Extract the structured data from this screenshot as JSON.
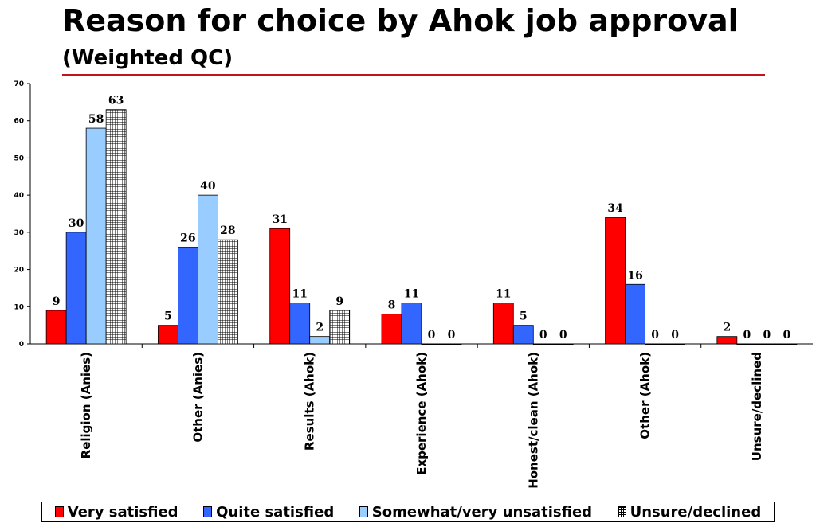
{
  "title": "Reason for choice by Ahok job approval",
  "subtitle": "(Weighted QC)",
  "colors": {
    "accent_rule": "#c0141b"
  },
  "chart_data": {
    "type": "bar",
    "categories": [
      "Religion (Anies)",
      "Other (Anies)",
      "Results (Ahok)",
      "Experience (Ahok)",
      "Honest/clean (Ahok)",
      "Other (Ahok)",
      "Unsure/declined"
    ],
    "series": [
      {
        "name": "Very satisfied",
        "color": "#ff0000",
        "pattern": "solid",
        "values": [
          9,
          5,
          31,
          8,
          11,
          34,
          2
        ]
      },
      {
        "name": "Quite satisfied",
        "color": "#3366ff",
        "pattern": "solid",
        "values": [
          30,
          26,
          11,
          11,
          5,
          16,
          0
        ]
      },
      {
        "name": "Somewhat/very unsatisfied",
        "color": "#99ccff",
        "pattern": "solid",
        "values": [
          58,
          40,
          2,
          0,
          0,
          0,
          0
        ]
      },
      {
        "name": "Unsure/declined",
        "color": "#ffffff",
        "pattern": "grid",
        "values": [
          63,
          28,
          9,
          0,
          0,
          0,
          0
        ]
      }
    ],
    "ylim": [
      0,
      70
    ],
    "yticks": [
      0,
      10,
      20,
      30,
      40,
      50,
      60,
      70
    ],
    "xlabel": "",
    "ylabel": "",
    "grid": false,
    "legend_position": "bottom"
  }
}
